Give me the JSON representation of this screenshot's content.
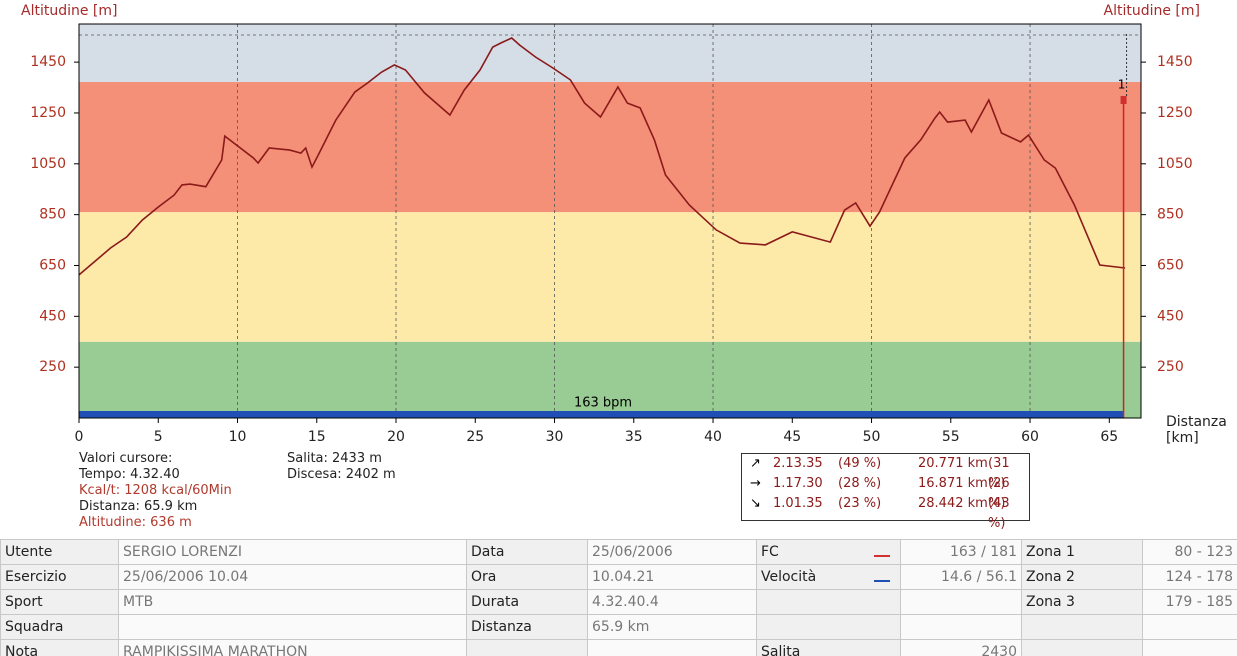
{
  "chart_data": {
    "type": "line",
    "ylabel": "Altitudine [m]",
    "y2label": "Altitudine [m]",
    "xlabel": "Distanza [km]",
    "x": [
      0,
      2,
      3,
      4,
      5,
      6,
      6.5,
      7,
      8,
      9,
      9.2,
      11,
      11.3,
      12,
      13.3,
      14,
      14.3,
      14.7,
      15.1,
      16.2,
      17.4,
      18.2,
      19.1,
      19.9,
      20.6,
      21.8,
      23.4,
      24.3,
      25.3,
      26.1,
      26.6,
      27.3,
      27.8,
      28.8,
      29.9,
      31.0,
      31.9,
      32.9,
      34.0,
      34.6,
      35.4,
      36.3,
      37.0,
      38.5,
      40.2,
      41.7,
      43.3,
      45.0,
      47.4,
      48.3,
      49.0,
      49.9,
      50.5,
      52.1,
      53.1,
      54.0,
      54.3,
      54.8,
      55.9,
      56.3,
      57.4,
      58.2,
      59.4,
      59.9,
      60.9,
      61.6,
      62.8,
      64.4,
      66.0
    ],
    "values": [
      613,
      719,
      762,
      829,
      880,
      927,
      967,
      970,
      960,
      1065,
      1159,
      1073,
      1053,
      1112,
      1104,
      1092,
      1112,
      1037,
      1085,
      1222,
      1332,
      1368,
      1411,
      1439,
      1419,
      1329,
      1242,
      1340,
      1419,
      1509,
      1525,
      1545,
      1517,
      1470,
      1427,
      1380,
      1289,
      1234,
      1352,
      1289,
      1270,
      1144,
      1006,
      888,
      790,
      738,
      731,
      782,
      742,
      868,
      896,
      805,
      860,
      1073,
      1144,
      1230,
      1254,
      1214,
      1222,
      1175,
      1301,
      1171,
      1136,
      1163,
      1065,
      1033,
      888,
      652,
      640
    ],
    "color": "#8b1a1a",
    "xlim": [
      0,
      67
    ],
    "xticks": [
      0,
      5,
      10,
      15,
      20,
      25,
      30,
      35,
      40,
      45,
      50,
      55,
      60,
      65
    ],
    "ylim": [
      50,
      1600
    ],
    "yticks": [
      250,
      450,
      650,
      850,
      1050,
      1250,
      1450
    ],
    "bands": [
      {
        "from": 50,
        "to": 350,
        "color": "#98cc94"
      },
      {
        "from": 350,
        "to": 860,
        "color": "#fde9a8"
      },
      {
        "from": 860,
        "to": 1372,
        "color": "#f48f78"
      },
      {
        "from": 1372,
        "to": 1600,
        "color": "#d5dde6"
      }
    ],
    "cursor": {
      "x": 65.9,
      "label": "1"
    },
    "bar_label": "163 bpm"
  },
  "cursor_info": {
    "title": "Valori cursore:",
    "tempo": "Tempo: 4.32.40",
    "kcal": "Kcal/t: 1208 kcal/60Min",
    "distanza": "Distanza: 65.9 km",
    "altitudine": "Altitudine: 636 m",
    "salita": "Salita: 2433 m",
    "discesa": "Discesa: 2402 m"
  },
  "laps": [
    [
      "2.13.35",
      "(49 %)",
      "20.771 km",
      "(31 %)"
    ],
    [
      "1.17.30",
      "(28 %)",
      "16.871 km",
      "(26 %)"
    ],
    [
      "1.01.35",
      "(23 %)",
      "28.442 km",
      "(43 %)"
    ]
  ],
  "table": {
    "rows": [
      [
        "Utente",
        "SERGIO LORENZI",
        "Data",
        "25/06/2006",
        "FC",
        "163 / 181",
        "Zona 1",
        "80 - 123"
      ],
      [
        "Esercizio",
        "25/06/2006 10.04",
        "Ora",
        "10.04.21",
        "Velocità",
        "14.6 / 56.1",
        "Zona 2",
        "124 - 178"
      ],
      [
        "Sport",
        "MTB",
        "Durata",
        "4.32.40.4",
        null,
        null,
        "Zona 3",
        "179 - 185"
      ],
      [
        "Squadra",
        null,
        "Distanza",
        "65.9 km",
        null,
        null,
        null,
        null
      ],
      [
        "Nota",
        "RAMPIKISSIMA MARATHON",
        null,
        null,
        "Salita",
        "2430",
        null,
        null
      ]
    ]
  }
}
